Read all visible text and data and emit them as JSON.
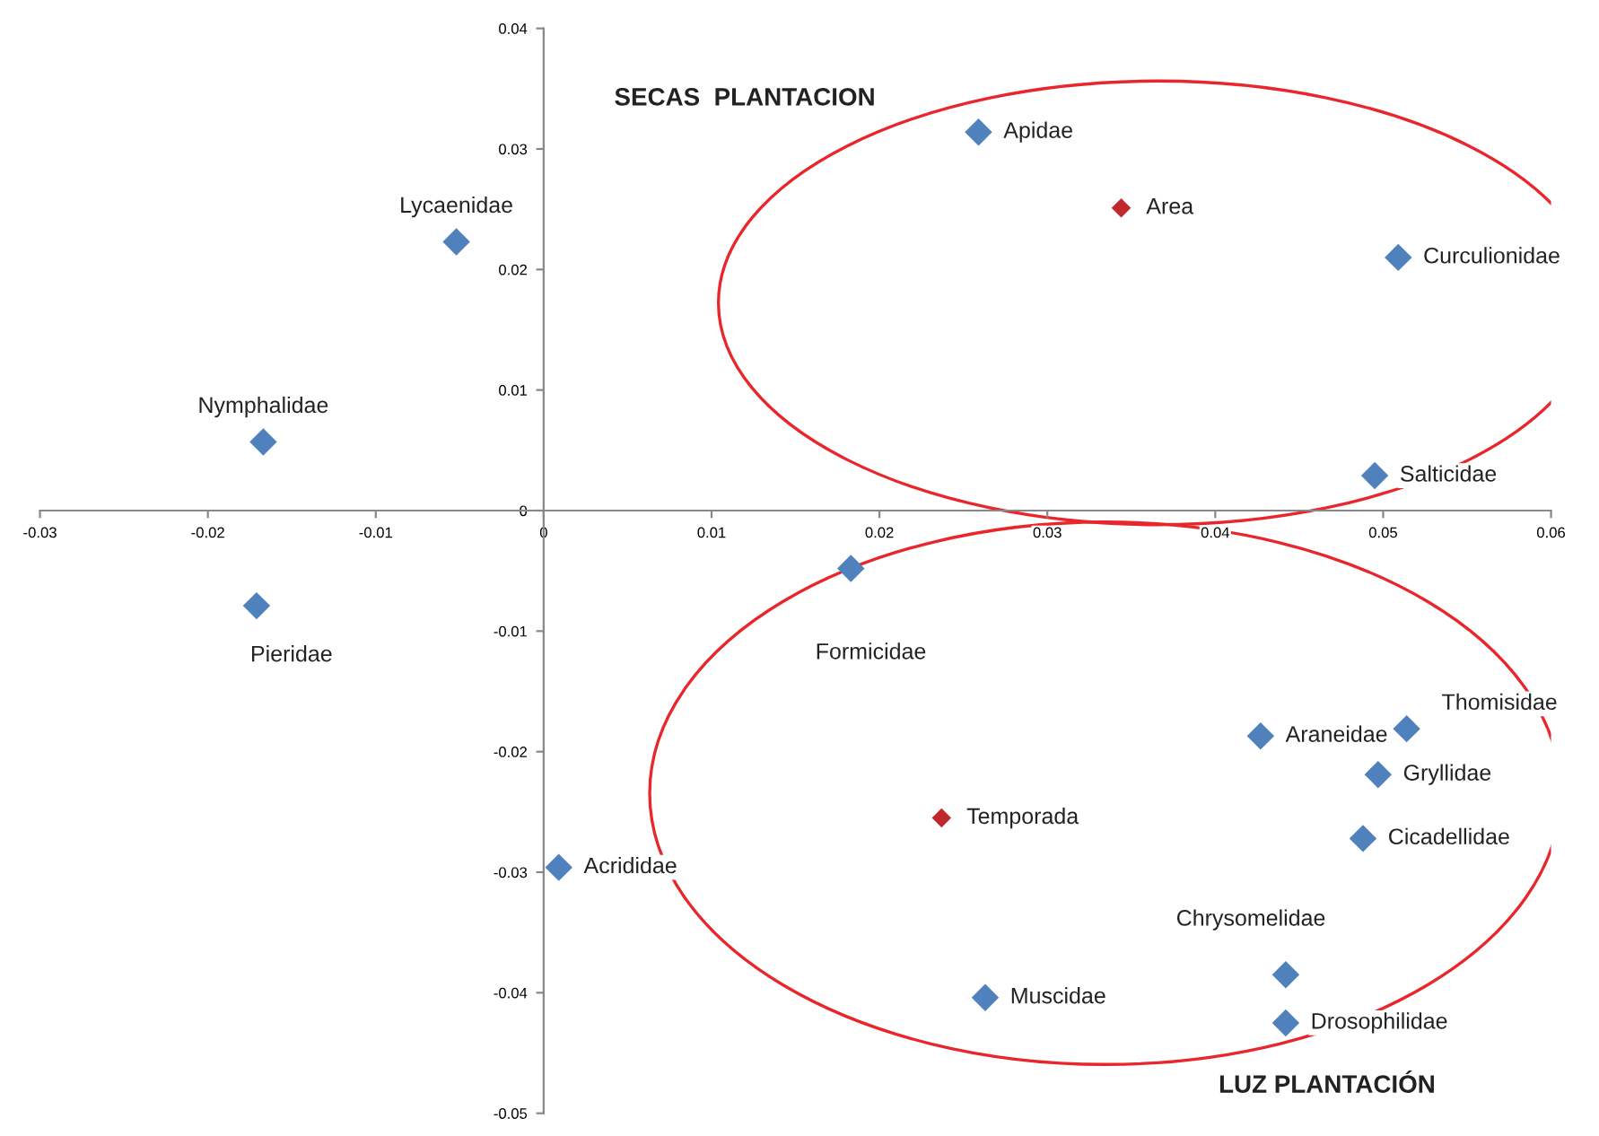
{
  "chart_data": {
    "type": "scatter",
    "marker": "diamond",
    "grid": false,
    "xlim": [
      -0.03,
      0.06
    ],
    "ylim": [
      -0.05,
      0.04
    ],
    "xticks": [
      -0.03,
      -0.02,
      -0.01,
      0,
      0.01,
      0.02,
      0.03,
      0.04,
      0.05,
      0.06
    ],
    "yticks": [
      -0.05,
      -0.04,
      -0.03,
      -0.02,
      -0.01,
      0,
      0.01,
      0.02,
      0.03,
      0.04
    ],
    "series": [
      {
        "color": "#4f81bd",
        "x": [
          -0.0052,
          -0.0167,
          -0.0171,
          0.0259,
          0.0509,
          0.0495,
          0.0183,
          0.0514,
          0.0427,
          0.0497,
          0.0488,
          0.0009,
          0.0442,
          0.0263,
          0.0442
        ],
        "values": [
          0.0223,
          0.0057,
          -0.0079,
          0.0314,
          0.021,
          0.0029,
          -0.0048,
          -0.0181,
          -0.0187,
          -0.0219,
          -0.0272,
          -0.0296,
          -0.0385,
          -0.0404,
          -0.0425
        ],
        "value_labels": [
          "Lycaenidae",
          "Nymphalidae",
          "Pieridae",
          "Apidae",
          "Curculionidae",
          "Salticidae",
          "Formicidae",
          "Thomisidae",
          "Araneidae",
          "Gryllidae",
          "Cicadellidae",
          "Acrididae",
          "Chrysomelidae",
          "Muscidae",
          "Drosophilidae"
        ]
      },
      {
        "color": "#c0282d",
        "x": [
          0.0344,
          0.0237
        ],
        "values": [
          0.0251,
          -0.0255
        ],
        "value_labels": [
          "Area",
          "Temporada"
        ]
      }
    ],
    "annotations": [
      "SECAS  PLANTACION",
      "LUZ PLANTACIÓN"
    ]
  }
}
